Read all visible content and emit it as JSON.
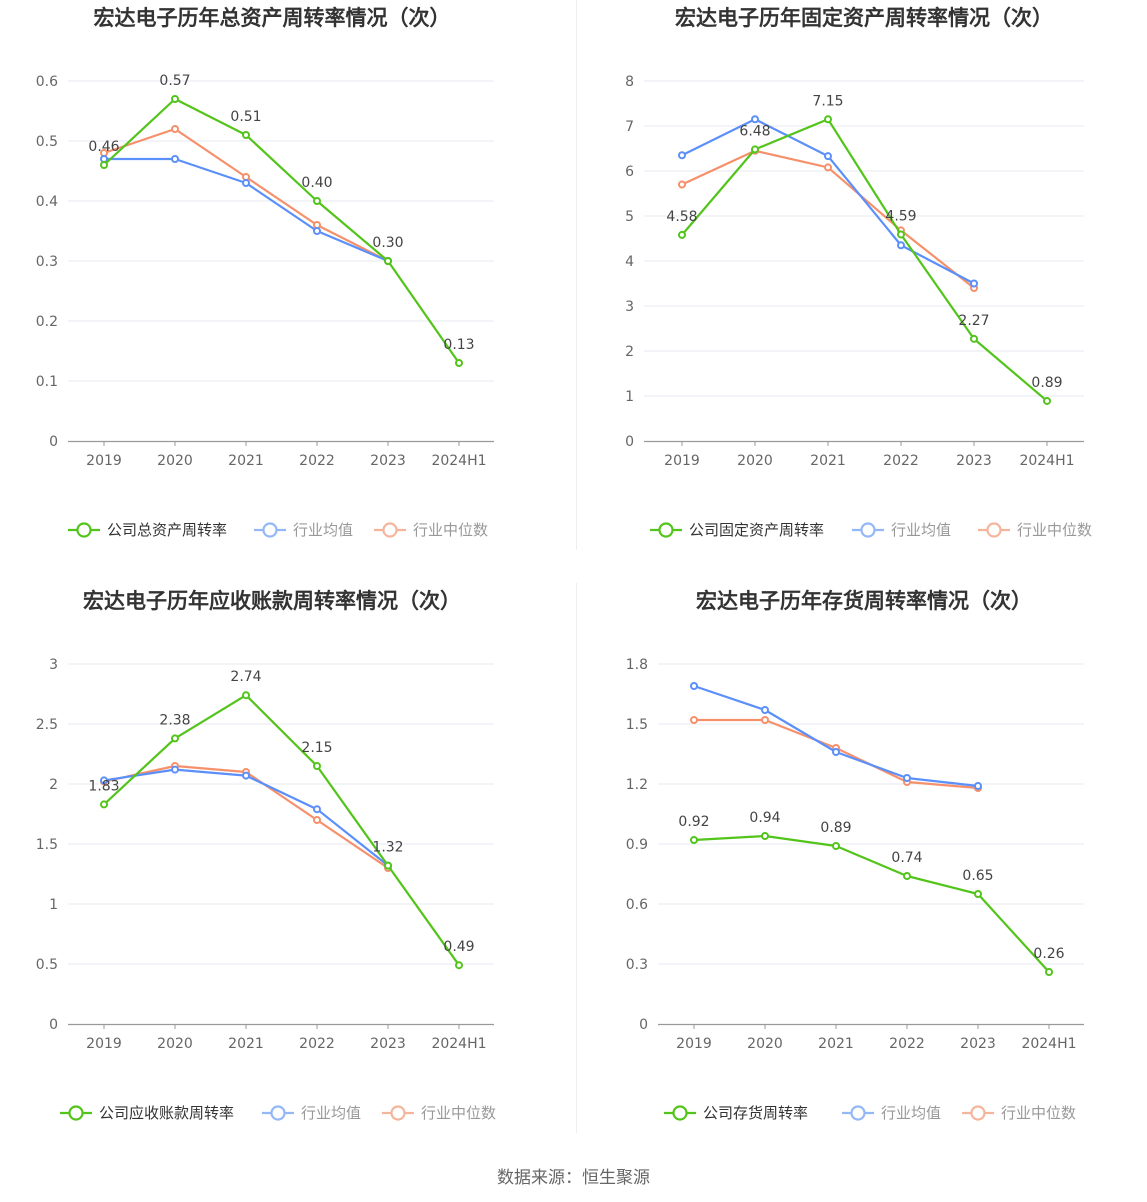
{
  "source_text": "数据来源：恒生聚源",
  "colors": {
    "company": "#52c41a",
    "industry_avg": "#5b8ff9",
    "industry_median": "#f6906b"
  },
  "chart_data": [
    {
      "type": "line",
      "title": "宏达电子历年总资产周转率情况（次）",
      "categories": [
        "2019",
        "2020",
        "2021",
        "2022",
        "2023",
        "2024H1"
      ],
      "ylim": [
        0,
        0.6
      ],
      "yticks": [
        "0",
        "0.1",
        "0.2",
        "0.3",
        "0.4",
        "0.5",
        "0.6"
      ],
      "series": [
        {
          "name": "公司总资产周转率",
          "values": [
            0.46,
            0.57,
            0.51,
            0.4,
            0.3,
            0.13
          ],
          "labels": [
            "0.46",
            "0.57",
            "0.51",
            "0.40",
            "0.30",
            "0.13"
          ]
        },
        {
          "name": "行业均值",
          "values": [
            0.47,
            0.47,
            0.43,
            0.35,
            0.3,
            null
          ]
        },
        {
          "name": "行业中位数",
          "values": [
            0.48,
            0.52,
            0.44,
            0.36,
            0.3,
            null
          ]
        }
      ]
    },
    {
      "type": "line",
      "title": "宏达电子历年固定资产周转率情况（次）",
      "categories": [
        "2019",
        "2020",
        "2021",
        "2022",
        "2023",
        "2024H1"
      ],
      "ylim": [
        0,
        8
      ],
      "yticks": [
        "0",
        "1",
        "2",
        "3",
        "4",
        "5",
        "6",
        "7",
        "8"
      ],
      "series": [
        {
          "name": "公司固定资产周转率",
          "values": [
            4.58,
            6.48,
            7.15,
            4.59,
            2.27,
            0.89
          ],
          "labels": [
            "4.58",
            "6.48",
            "7.15",
            "4.59",
            "2.27",
            "0.89"
          ]
        },
        {
          "name": "行业均值",
          "values": [
            6.35,
            7.15,
            6.33,
            4.35,
            3.5,
            null
          ]
        },
        {
          "name": "行业中位数",
          "values": [
            5.7,
            6.45,
            6.08,
            4.68,
            3.4,
            null
          ]
        }
      ]
    },
    {
      "type": "line",
      "title": "宏达电子历年应收账款周转率情况（次）",
      "categories": [
        "2019",
        "2020",
        "2021",
        "2022",
        "2023",
        "2024H1"
      ],
      "ylim": [
        0,
        3
      ],
      "yticks": [
        "0",
        "0.5",
        "1",
        "1.5",
        "2",
        "2.5",
        "3"
      ],
      "series": [
        {
          "name": "公司应收账款周转率",
          "values": [
            1.83,
            2.38,
            2.74,
            2.15,
            1.32,
            0.49
          ],
          "labels": [
            "1.83",
            "2.38",
            "2.74",
            "2.15",
            "1.32",
            "0.49"
          ]
        },
        {
          "name": "行业均值",
          "values": [
            2.03,
            2.12,
            2.07,
            1.79,
            1.32,
            null
          ]
        },
        {
          "name": "行业中位数",
          "values": [
            2.02,
            2.15,
            2.1,
            1.7,
            1.3,
            null
          ]
        }
      ]
    },
    {
      "type": "line",
      "title": "宏达电子历年存货周转率情况（次）",
      "categories": [
        "2019",
        "2020",
        "2021",
        "2022",
        "2023",
        "2024H1"
      ],
      "ylim": [
        0,
        1.8
      ],
      "yticks": [
        "0",
        "0.3",
        "0.6",
        "0.9",
        "1.2",
        "1.5",
        "1.8"
      ],
      "series": [
        {
          "name": "公司存货周转率",
          "values": [
            0.92,
            0.94,
            0.89,
            0.74,
            0.65,
            0.26
          ],
          "labels": [
            "0.92",
            "0.94",
            "0.89",
            "0.74",
            "0.65",
            "0.26"
          ]
        },
        {
          "name": "行业均值",
          "values": [
            1.69,
            1.57,
            1.36,
            1.23,
            1.19,
            null
          ]
        },
        {
          "name": "行业中位数",
          "values": [
            1.52,
            1.52,
            1.38,
            1.21,
            1.18,
            null
          ]
        }
      ]
    }
  ]
}
